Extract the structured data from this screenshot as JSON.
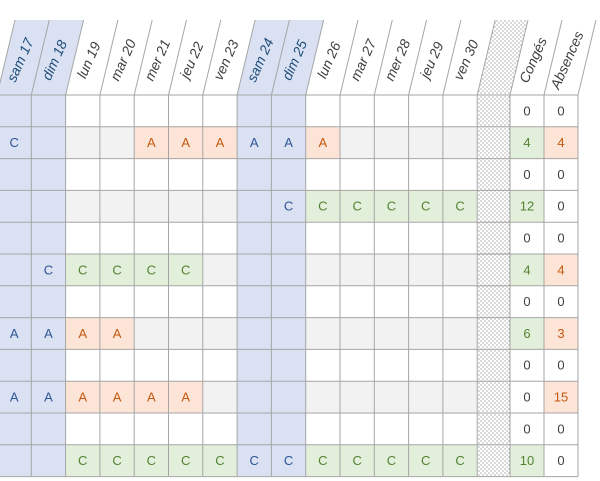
{
  "colors": {
    "weekend_bg": "#d9e1f2",
    "weekend_header_text": "#1f4e79",
    "weekday_header_text": "#404040",
    "stripe_bg": "#f2f2f2",
    "gridline": "#a6a6a6",
    "absence_bg": "#fce4d6",
    "absence_text": "#c65911",
    "conge_bg": "#e2efda",
    "conge_text": "#548235",
    "weekend_mark_text": "#2f5597",
    "total_text": "#404040"
  },
  "day_columns": [
    {
      "label": "sam 17",
      "weekend": true
    },
    {
      "label": "dim 18",
      "weekend": true
    },
    {
      "label": "lun 19",
      "weekend": false
    },
    {
      "label": "mar 20",
      "weekend": false
    },
    {
      "label": "mer 21",
      "weekend": false
    },
    {
      "label": "jeu 22",
      "weekend": false
    },
    {
      "label": "ven 23",
      "weekend": false
    },
    {
      "label": "sam 24",
      "weekend": true
    },
    {
      "label": "dim 25",
      "weekend": true
    },
    {
      "label": "lun 26",
      "weekend": false
    },
    {
      "label": "mar 27",
      "weekend": false
    },
    {
      "label": "mer 28",
      "weekend": false
    },
    {
      "label": "jeu 29",
      "weekend": false
    },
    {
      "label": "ven 30",
      "weekend": false
    }
  ],
  "summary_columns": {
    "conges_label": "Congés",
    "absences_label": "Absences"
  },
  "rows": [
    {
      "cells": [
        "",
        "",
        "",
        "",
        "",
        "",
        "",
        "",
        "",
        "",
        "",
        "",
        "",
        ""
      ],
      "conges": "0",
      "absences": "0"
    },
    {
      "cells": [
        "C",
        "",
        "",
        "",
        "A",
        "A",
        "A",
        "A",
        "A",
        "A",
        "",
        "",
        "",
        ""
      ],
      "conges": "4",
      "absences": "4"
    },
    {
      "cells": [
        "",
        "",
        "",
        "",
        "",
        "",
        "",
        "",
        "",
        "",
        "",
        "",
        "",
        ""
      ],
      "conges": "0",
      "absences": "0"
    },
    {
      "cells": [
        "",
        "",
        "",
        "",
        "",
        "",
        "",
        "",
        "C",
        "C",
        "C",
        "C",
        "C",
        "C"
      ],
      "conges": "12",
      "absences": "0"
    },
    {
      "cells": [
        "",
        "",
        "",
        "",
        "",
        "",
        "",
        "",
        "",
        "",
        "",
        "",
        "",
        ""
      ],
      "conges": "0",
      "absences": "0"
    },
    {
      "cells": [
        "",
        "C",
        "C",
        "C",
        "C",
        "C",
        "",
        "",
        "",
        "",
        "",
        "",
        "",
        ""
      ],
      "conges": "4",
      "absences": "4"
    },
    {
      "cells": [
        "",
        "",
        "",
        "",
        "",
        "",
        "",
        "",
        "",
        "",
        "",
        "",
        "",
        ""
      ],
      "conges": "0",
      "absences": "0"
    },
    {
      "cells": [
        "A",
        "A",
        "A",
        "A",
        "",
        "",
        "",
        "",
        "",
        "",
        "",
        "",
        "",
        ""
      ],
      "conges": "6",
      "absences": "3"
    },
    {
      "cells": [
        "",
        "",
        "",
        "",
        "",
        "",
        "",
        "",
        "",
        "",
        "",
        "",
        "",
        ""
      ],
      "conges": "0",
      "absences": "0"
    },
    {
      "cells": [
        "A",
        "A",
        "A",
        "A",
        "A",
        "A",
        "",
        "",
        "",
        "",
        "",
        "",
        "",
        ""
      ],
      "conges": "0",
      "absences": "15"
    },
    {
      "cells": [
        "",
        "",
        "",
        "",
        "",
        "",
        "",
        "",
        "",
        "",
        "",
        "",
        "",
        ""
      ],
      "conges": "0",
      "absences": "0"
    },
    {
      "cells": [
        "",
        "",
        "C",
        "C",
        "C",
        "C",
        "C",
        "C",
        "C",
        "C",
        "C",
        "C",
        "C",
        "C"
      ],
      "conges": "10",
      "absences": "0"
    }
  ]
}
